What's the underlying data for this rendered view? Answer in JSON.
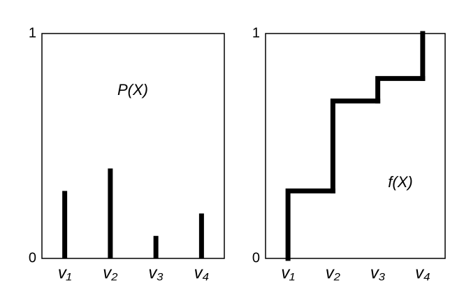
{
  "chart_data": [
    {
      "type": "bar",
      "annotation": "P(X)",
      "categories": [
        "v₁",
        "v₂",
        "v₃",
        "v₄"
      ],
      "values": [
        0.3,
        0.4,
        0.1,
        0.2
      ],
      "color": "#000000",
      "ylim": [
        0,
        1
      ],
      "yticks": [
        0,
        1
      ]
    },
    {
      "type": "step",
      "annotation": "f(X)",
      "categories": [
        "v₁",
        "v₂",
        "v₃",
        "v₄"
      ],
      "values": [
        0.3,
        0.7,
        0.8,
        1
      ],
      "color": "#000000",
      "ylim": [
        0,
        1
      ],
      "yticks": [
        0,
        1
      ]
    }
  ]
}
